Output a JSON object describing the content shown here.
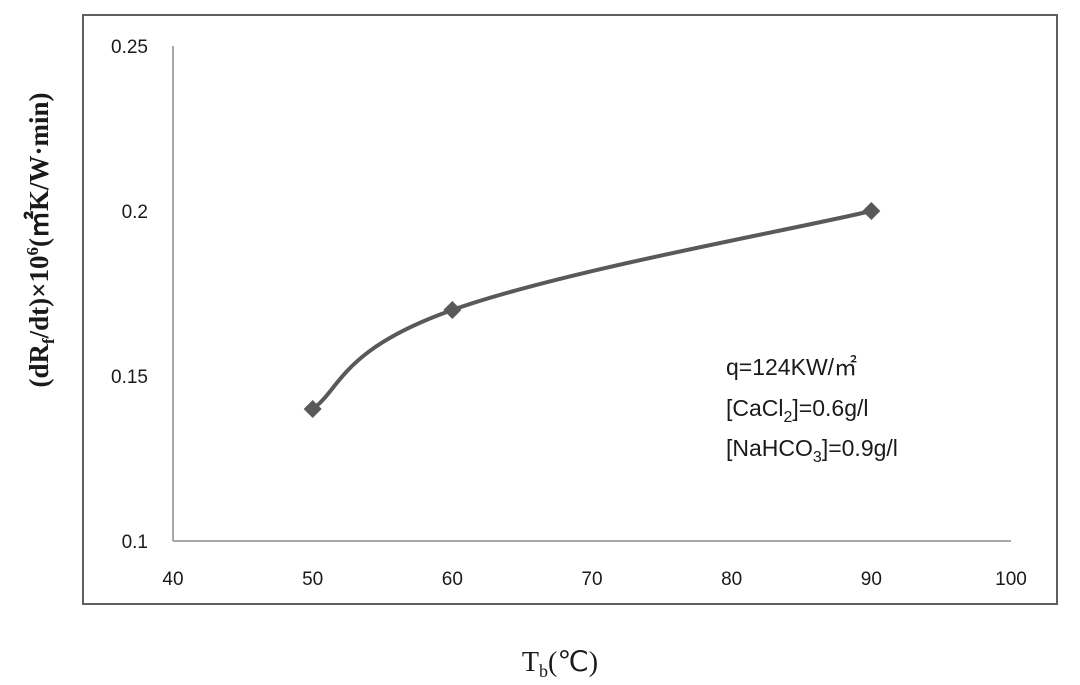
{
  "chart_data": {
    "type": "line",
    "x": [
      50,
      60,
      90
    ],
    "series": [
      {
        "values": [
          0.14,
          0.17,
          0.2
        ]
      }
    ],
    "xlim": [
      40,
      100
    ],
    "ylim": [
      0.1,
      0.25
    ],
    "x_ticks": [
      "40",
      "50",
      "60",
      "70",
      "80",
      "90",
      "100"
    ],
    "y_ticks": [
      "0.1",
      "0.15",
      "0.2",
      "0.25"
    ],
    "x_tick_values": [
      40,
      50,
      60,
      70,
      80,
      90,
      100
    ],
    "y_tick_values": [
      0.1,
      0.15,
      0.2,
      0.25
    ],
    "xlabel": {
      "base": "T",
      "sub": "b",
      "rest": "(℃)"
    },
    "ylabel": {
      "p1": "(dR",
      "sub": "f",
      "p2": "/dt)×10",
      "sup": "6",
      "p3": "(㎡K/W·min)"
    },
    "annotations": {
      "line1": "q=124KW/㎡",
      "line2": {
        "pre": "[CaCl",
        "sub": "2",
        "post": "]=0.6g/l"
      },
      "line3": {
        "pre": "[NaHCO",
        "sub": "3",
        "post": "]=0.9g/l"
      }
    },
    "grid": false,
    "line_color": "#595959",
    "marker": "diamond"
  }
}
